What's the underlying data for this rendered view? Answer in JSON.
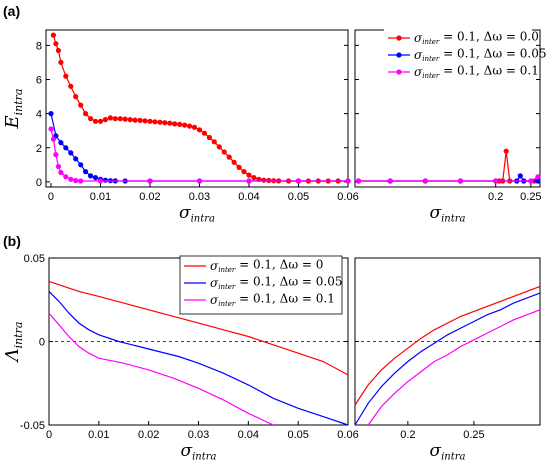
{
  "chart_data": [
    {
      "panel": "(a)",
      "type": "line",
      "ylabel_main": "E",
      "ylabel_sub": "intra",
      "xlabel_main": "σ",
      "xlabel_sub": "intra",
      "ylim": [
        -0.3,
        8.9
      ],
      "yticks": [
        0,
        2,
        4,
        6,
        8
      ],
      "legend_position": "top-right",
      "left": {
        "xlim": [
          -0.001,
          0.06
        ],
        "xticks": [
          "0",
          "0.01",
          "0.02",
          "0.03",
          "0.04",
          "0.05",
          "0.06"
        ],
        "xtick_values": [
          0,
          0.01,
          0.02,
          0.03,
          0.04,
          0.05,
          0.06
        ]
      },
      "right": {
        "xlim": [
          0.0,
          0.263
        ],
        "xticks": [
          "0.2",
          "0.25"
        ],
        "xtick_values": [
          0.2,
          0.25
        ]
      },
      "series": [
        {
          "name_main": "σ",
          "name_sub": "inter",
          "name_rest": " = 0.1, Δω = 0.0",
          "color": "#ff0000",
          "left": [
            [
              0.0005,
              8.6
            ],
            [
              0.001,
              8.1
            ],
            [
              0.0015,
              7.7
            ],
            [
              0.002,
              7.0
            ],
            [
              0.003,
              6.2
            ],
            [
              0.004,
              5.6
            ],
            [
              0.005,
              5.0
            ],
            [
              0.006,
              4.5
            ],
            [
              0.007,
              4.0
            ],
            [
              0.008,
              3.7
            ],
            [
              0.009,
              3.55
            ],
            [
              0.01,
              3.55
            ],
            [
              0.011,
              3.65
            ],
            [
              0.012,
              3.75
            ],
            [
              0.013,
              3.7
            ],
            [
              0.014,
              3.7
            ],
            [
              0.015,
              3.68
            ],
            [
              0.016,
              3.65
            ],
            [
              0.017,
              3.62
            ],
            [
              0.018,
              3.6
            ],
            [
              0.019,
              3.58
            ],
            [
              0.02,
              3.55
            ],
            [
              0.021,
              3.52
            ],
            [
              0.022,
              3.5
            ],
            [
              0.023,
              3.47
            ],
            [
              0.024,
              3.44
            ],
            [
              0.025,
              3.4
            ],
            [
              0.026,
              3.37
            ],
            [
              0.027,
              3.33
            ],
            [
              0.028,
              3.27
            ],
            [
              0.029,
              3.2
            ],
            [
              0.03,
              3.05
            ],
            [
              0.031,
              2.85
            ],
            [
              0.032,
              2.6
            ],
            [
              0.033,
              2.35
            ],
            [
              0.034,
              2.05
            ],
            [
              0.035,
              1.75
            ],
            [
              0.036,
              1.45
            ],
            [
              0.037,
              1.15
            ],
            [
              0.038,
              0.85
            ],
            [
              0.039,
              0.6
            ],
            [
              0.04,
              0.4
            ],
            [
              0.041,
              0.25
            ],
            [
              0.042,
              0.15
            ],
            [
              0.043,
              0.1
            ],
            [
              0.044,
              0.08
            ],
            [
              0.045,
              0.07
            ],
            [
              0.046,
              0.06
            ],
            [
              0.048,
              0.05
            ],
            [
              0.05,
              0.05
            ],
            [
              0.052,
              0.05
            ],
            [
              0.054,
              0.05
            ],
            [
              0.056,
              0.05
            ],
            [
              0.058,
              0.05
            ],
            [
              0.06,
              0.05
            ]
          ],
          "right": [
            [
              0.005,
              0.05
            ],
            [
              0.05,
              0.05
            ],
            [
              0.1,
              0.05
            ],
            [
              0.15,
              0.05
            ],
            [
              0.2,
              0.05
            ],
            [
              0.205,
              0.05
            ],
            [
              0.21,
              0.05
            ],
            [
              0.215,
              1.8
            ],
            [
              0.22,
              0.05
            ],
            [
              0.23,
              0.05
            ],
            [
              0.24,
              0.05
            ],
            [
              0.25,
              0.05
            ],
            [
              0.255,
              0.05
            ],
            [
              0.26,
              0.05
            ]
          ]
        },
        {
          "name_main": "σ",
          "name_sub": "inter",
          "name_rest": " = 0.1, Δω = 0.05",
          "color": "#0000ff",
          "left": [
            [
              0.0,
              4.0
            ],
            [
              0.001,
              2.7
            ],
            [
              0.002,
              2.3
            ],
            [
              0.003,
              2.0
            ],
            [
              0.004,
              1.7
            ],
            [
              0.005,
              1.35
            ],
            [
              0.006,
              1.0
            ],
            [
              0.007,
              0.6
            ],
            [
              0.008,
              0.35
            ],
            [
              0.009,
              0.25
            ],
            [
              0.01,
              0.15
            ],
            [
              0.011,
              0.1
            ],
            [
              0.012,
              0.07
            ],
            [
              0.013,
              0.06
            ],
            [
              0.015,
              0.05
            ],
            [
              0.02,
              0.05
            ],
            [
              0.03,
              0.05
            ],
            [
              0.04,
              0.05
            ],
            [
              0.05,
              0.05
            ],
            [
              0.06,
              0.05
            ]
          ],
          "right": [
            [
              0.005,
              0.05
            ],
            [
              0.05,
              0.05
            ],
            [
              0.1,
              0.05
            ],
            [
              0.15,
              0.05
            ],
            [
              0.2,
              0.05
            ],
            [
              0.23,
              0.05
            ],
            [
              0.235,
              0.35
            ],
            [
              0.24,
              0.05
            ],
            [
              0.25,
              0.05
            ],
            [
              0.26,
              0.05
            ]
          ]
        },
        {
          "name_main": "σ",
          "name_sub": "inter",
          "name_rest": " = 0.1, Δω = 0.1",
          "color": "#ff00ff",
          "left": [
            [
              0.0,
              3.1
            ],
            [
              0.0005,
              2.5
            ],
            [
              0.001,
              1.6
            ],
            [
              0.0015,
              0.9
            ],
            [
              0.002,
              0.55
            ],
            [
              0.003,
              0.3
            ],
            [
              0.004,
              0.15
            ],
            [
              0.005,
              0.08
            ],
            [
              0.006,
              0.05
            ],
            [
              0.01,
              0.05
            ],
            [
              0.02,
              0.05
            ],
            [
              0.03,
              0.05
            ],
            [
              0.04,
              0.05
            ],
            [
              0.05,
              0.05
            ],
            [
              0.06,
              0.05
            ]
          ],
          "right": [
            [
              0.005,
              0.05
            ],
            [
              0.05,
              0.05
            ],
            [
              0.1,
              0.05
            ],
            [
              0.15,
              0.05
            ],
            [
              0.2,
              0.05
            ],
            [
              0.25,
              0.05
            ],
            [
              0.26,
              0.3
            ]
          ]
        }
      ]
    },
    {
      "panel": "(b)",
      "type": "line",
      "ylabel_main": "Λ",
      "ylabel_sub": "intra",
      "xlabel_main": "σ",
      "xlabel_sub": "intra",
      "ylim": [
        -0.05,
        0.05
      ],
      "yticks": [
        "-0.05",
        "0",
        "0.05"
      ],
      "ytick_values": [
        -0.05,
        0,
        0.05
      ],
      "zero_line": "dashed",
      "legend_position": "top-right",
      "left": {
        "xlim": [
          0.0,
          0.06
        ],
        "xticks": [
          "0",
          "0.01",
          "0.02",
          "0.03",
          "0.04",
          "0.05",
          "0.06"
        ],
        "xtick_values": [
          0,
          0.01,
          0.02,
          0.03,
          0.04,
          0.05,
          0.06
        ]
      },
      "right": {
        "xlim": [
          0.16,
          0.3
        ],
        "xticks": [
          "0.2",
          "0.25"
        ],
        "xtick_values": [
          0.2,
          0.25
        ]
      },
      "series": [
        {
          "name_main": "σ",
          "name_sub": "inter",
          "name_rest": " = 0.1, Δω = 0",
          "color": "#ff0000",
          "left": [
            [
              0.0,
              0.036
            ],
            [
              0.003,
              0.033
            ],
            [
              0.006,
              0.03
            ],
            [
              0.01,
              0.027
            ],
            [
              0.015,
              0.023
            ],
            [
              0.02,
              0.019
            ],
            [
              0.025,
              0.015
            ],
            [
              0.03,
              0.011
            ],
            [
              0.035,
              0.007
            ],
            [
              0.04,
              0.003
            ],
            [
              0.045,
              -0.002
            ],
            [
              0.05,
              -0.007
            ],
            [
              0.055,
              -0.012
            ],
            [
              0.06,
              -0.02
            ]
          ],
          "right": [
            [
              0.16,
              -0.038
            ],
            [
              0.17,
              -0.026
            ],
            [
              0.18,
              -0.017
            ],
            [
              0.19,
              -0.01
            ],
            [
              0.2,
              -0.004
            ],
            [
              0.21,
              0.002
            ],
            [
              0.22,
              0.007
            ],
            [
              0.23,
              0.011
            ],
            [
              0.24,
              0.015
            ],
            [
              0.25,
              0.018
            ],
            [
              0.26,
              0.021
            ],
            [
              0.27,
              0.024
            ],
            [
              0.28,
              0.027
            ],
            [
              0.29,
              0.03
            ],
            [
              0.3,
              0.033
            ]
          ]
        },
        {
          "name_main": "σ",
          "name_sub": "inter",
          "name_rest": " = 0.1, Δω = 0.05",
          "color": "#0000ff",
          "left": [
            [
              0.0,
              0.03
            ],
            [
              0.002,
              0.024
            ],
            [
              0.004,
              0.017
            ],
            [
              0.006,
              0.011
            ],
            [
              0.008,
              0.007
            ],
            [
              0.01,
              0.004
            ],
            [
              0.014,
              0.0
            ],
            [
              0.018,
              -0.003
            ],
            [
              0.022,
              -0.006
            ],
            [
              0.026,
              -0.009
            ],
            [
              0.03,
              -0.013
            ],
            [
              0.035,
              -0.019
            ],
            [
              0.04,
              -0.026
            ],
            [
              0.045,
              -0.034
            ],
            [
              0.05,
              -0.04
            ],
            [
              0.055,
              -0.045
            ],
            [
              0.06,
              -0.05
            ]
          ],
          "right": [
            [
              0.16,
              -0.05
            ],
            [
              0.17,
              -0.037
            ],
            [
              0.18,
              -0.027
            ],
            [
              0.19,
              -0.019
            ],
            [
              0.2,
              -0.012
            ],
            [
              0.21,
              -0.006
            ],
            [
              0.22,
              -0.001
            ],
            [
              0.23,
              0.004
            ],
            [
              0.24,
              0.008
            ],
            [
              0.25,
              0.012
            ],
            [
              0.26,
              0.016
            ],
            [
              0.27,
              0.019
            ],
            [
              0.28,
              0.023
            ],
            [
              0.29,
              0.026
            ],
            [
              0.3,
              0.029
            ]
          ]
        },
        {
          "name_main": "σ",
          "name_sub": "inter",
          "name_rest": " = 0.1, Δω = 0.1",
          "color": "#ff00ff",
          "left": [
            [
              0.0,
              0.017
            ],
            [
              0.002,
              0.01
            ],
            [
              0.004,
              0.003
            ],
            [
              0.006,
              -0.003
            ],
            [
              0.008,
              -0.007
            ],
            [
              0.01,
              -0.01
            ],
            [
              0.015,
              -0.013
            ],
            [
              0.02,
              -0.017
            ],
            [
              0.025,
              -0.022
            ],
            [
              0.03,
              -0.028
            ],
            [
              0.035,
              -0.035
            ],
            [
              0.04,
              -0.043
            ],
            [
              0.045,
              -0.05
            ]
          ],
          "right": [
            [
              0.17,
              -0.05
            ],
            [
              0.18,
              -0.039
            ],
            [
              0.19,
              -0.031
            ],
            [
              0.2,
              -0.024
            ],
            [
              0.21,
              -0.018
            ],
            [
              0.22,
              -0.012
            ],
            [
              0.23,
              -0.008
            ],
            [
              0.24,
              -0.003
            ],
            [
              0.25,
              0.001
            ],
            [
              0.26,
              0.005
            ],
            [
              0.27,
              0.009
            ],
            [
              0.28,
              0.013
            ],
            [
              0.29,
              0.016
            ],
            [
              0.3,
              0.019
            ]
          ]
        }
      ]
    }
  ]
}
